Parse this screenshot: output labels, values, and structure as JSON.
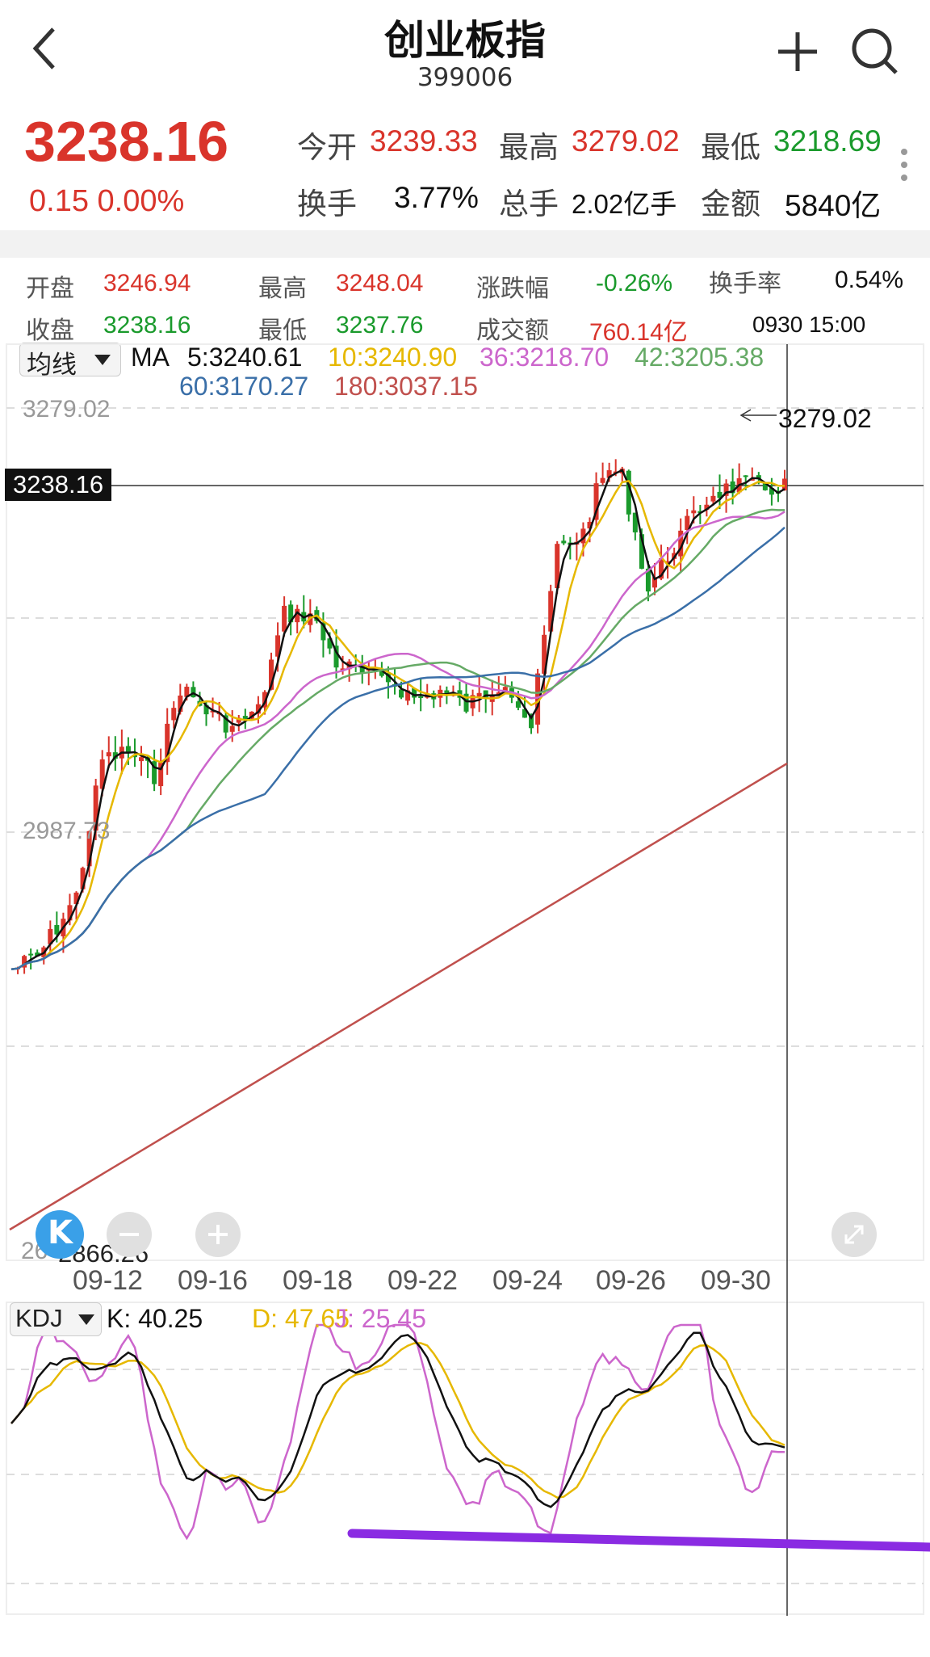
{
  "header": {
    "title": "创业板指",
    "code": "399006"
  },
  "quote": {
    "price": "3238.16",
    "change": "0.15 0.00%",
    "row1": [
      {
        "label": "今开",
        "value": "3239.33",
        "tone": "red"
      },
      {
        "label": "最高",
        "value": "3279.02",
        "tone": "red"
      },
      {
        "label": "最低",
        "value": "3218.69",
        "tone": "green"
      }
    ],
    "row2": [
      {
        "label": "换手",
        "value": "3.77%",
        "tone": "black"
      },
      {
        "label": "总手",
        "value": "2.02亿手",
        "tone": "black"
      },
      {
        "label": "金额",
        "value": "5840亿",
        "tone": "black"
      }
    ]
  },
  "bar_stats": {
    "open_label": "开盘",
    "open": "3246.94",
    "high_label": "最高",
    "high": "3248.04",
    "chg_label": "涨跌幅",
    "chg": "-0.26%",
    "turn_label": "换手率",
    "turn": "0.54%",
    "close_label": "收盘",
    "close": "3238.16",
    "low_label": "最低",
    "low": "3237.76",
    "amt_label": "成交额",
    "amt": "760.14亿",
    "time": "0930 15:00"
  },
  "ma_legend": {
    "selector": "均线",
    "prefix": "MA",
    "ma5": "5:3240.61",
    "ma10": "10:3240.90",
    "ma36": "36:3218.70",
    "ma42": "42:3205.38",
    "ma60": "60:3170.27",
    "ma180": "180:3037.15"
  },
  "axis": {
    "top": "3279.02",
    "mid": "2987.73",
    "bottom_a": "26",
    "bottom_b": "2866.26",
    "current_tag": "3238.16",
    "high_marker": "3279.02"
  },
  "dates": [
    "09-12",
    "09-16",
    "09-18",
    "09-22",
    "09-24",
    "09-26",
    "09-30"
  ],
  "kdj_legend": {
    "selector": "KDJ",
    "k": "K: 40.25",
    "d": "D: 47.65",
    "j": "J: 25.45"
  },
  "colors": {
    "up": "#d9342b",
    "down": "#1a9a2c",
    "ma5": "#111111",
    "ma10": "#e6b800",
    "ma36": "#cc66cc",
    "ma42": "#66aa66",
    "ma60": "#3a6fa8",
    "ma180": "#c0504d",
    "k": "#111111",
    "d": "#e6b800",
    "j": "#cc66cc",
    "annotation": "#8a2be2"
  },
  "icons": {
    "back": "chevron-left-icon",
    "add": "plus-icon",
    "search": "search-icon",
    "more": "more-vertical-icon",
    "k_logo": "k-logo-icon",
    "zoom_out": "zoom-out-icon",
    "zoom_in": "zoom-in-icon",
    "fullscreen": "expand-icon"
  }
}
